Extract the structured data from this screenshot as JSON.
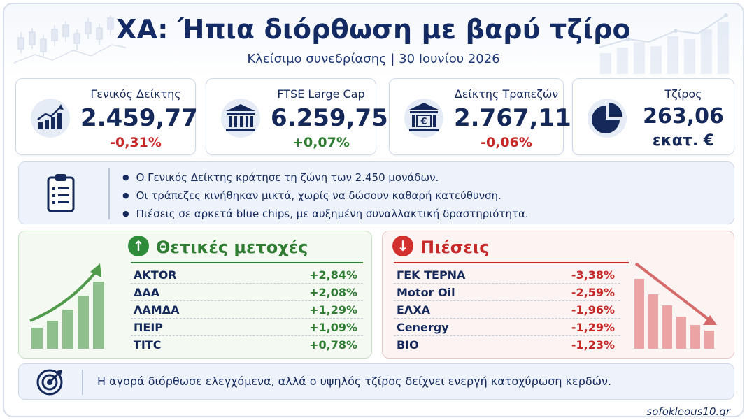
{
  "header": {
    "title": "ΧΑ: Ήπια διόρθωση με βαρύ τζίρο",
    "subtitle": "Κλείσιμο συνεδρίασης | 30 Ιουνίου 2026"
  },
  "cards": [
    {
      "label": "Γενικός Δείκτης",
      "value": "2.459,77",
      "change": "-0,31%",
      "icon": "chart-up-icon"
    },
    {
      "label": "FTSE Large Cap",
      "value": "6.259,75",
      "change": "+0,07%",
      "icon": "bank-building-icon"
    },
    {
      "label": "Δείκτης Τραπεζών",
      "value": "2.767,11",
      "change": "-0,06%",
      "icon": "euro-bank-icon"
    },
    {
      "label": "Τζίρος",
      "value": "263,06",
      "unit": "εκατ. €",
      "icon": "pie-chart-icon"
    }
  ],
  "notes": {
    "icon": "clipboard-icon",
    "items": [
      "Ο Γενικός Δείκτης  κράτησε τη ζώνη των 2.450 μονάδων.",
      "Οι τράπεζες  κινήθηκαν μικτά, χωρίς να δώσουν καθαρή κατεύθυνση.",
      "Πιέσεις σε αρκετά blue chips, με αυξημένη συναλλακτική δραστηριότητα."
    ]
  },
  "gainers": {
    "title": "Θετικές μετοχές",
    "rows": [
      {
        "name": "AKTOR",
        "pct": "+2,84%"
      },
      {
        "name": "ΔΑΑ",
        "pct": "+2,08%"
      },
      {
        "name": "ΛΑΜΔΑ",
        "pct": "+1,29%"
      },
      {
        "name": "ΠΕΙΡ",
        "pct": "+1,09%"
      },
      {
        "name": "TITC",
        "pct": "+0,78%"
      }
    ]
  },
  "losers": {
    "title": "Πιέσεις",
    "rows": [
      {
        "name": "ΓΕΚ ΤΕΡΝΑ",
        "pct": "-3,38%"
      },
      {
        "name": "Motor Oil",
        "pct": "-2,59%"
      },
      {
        "name": "ΕΛΧΑ",
        "pct": "-1,96%"
      },
      {
        "name": "Cenergy",
        "pct": "-1,29%"
      },
      {
        "name": "ΒΙΟ",
        "pct": "-1,23%"
      }
    ]
  },
  "conclusion": {
    "icon": "target-icon",
    "text": "Η αγορά διόρθωσε ελεγχόμενα, αλλά ο υψηλός τζίρος δείχνει ενεργή κατοχύρωση κερδών."
  },
  "footer": {
    "source": "sofokleous10.gr"
  },
  "colors": {
    "navy": "#14285a",
    "green": "#2e7d32",
    "red": "#c62828"
  }
}
